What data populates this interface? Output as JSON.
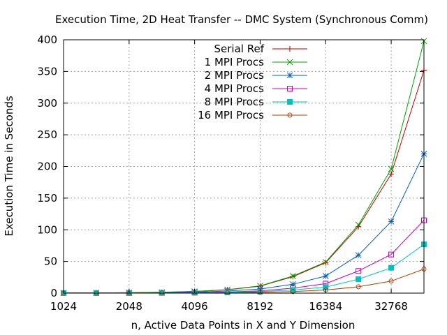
{
  "chart_data": {
    "type": "line",
    "title": "Execution Time, 2D Heat Transfer -- DMC System (Synchronous Comm)",
    "xlabel": "n, Active Data Points in X and Y Dimension",
    "ylabel": "Execution Time in Seconds",
    "xscale": "log2",
    "xlim": [
      1024,
      46341
    ],
    "ylim": [
      0,
      400
    ],
    "xticks": [
      1024,
      2048,
      4096,
      8192,
      16384,
      32768
    ],
    "yticks": [
      0,
      50,
      100,
      150,
      200,
      250,
      300,
      350,
      400
    ],
    "grid": true,
    "legend_position": "top-center",
    "x": [
      1024,
      1448,
      2048,
      2896,
      4096,
      5793,
      8192,
      11585,
      16384,
      23170,
      32768,
      46341
    ],
    "series": [
      {
        "name": "Serial Ref",
        "color": "#c00000",
        "marker": "plus",
        "values": [
          0.2,
          0.4,
          0.7,
          1.3,
          2.6,
          5.3,
          11,
          26,
          48,
          105,
          188,
          352
        ]
      },
      {
        "name": "1 MPI Procs",
        "color": "#00a000",
        "marker": "cross",
        "values": [
          0.2,
          0.4,
          0.7,
          1.3,
          2.7,
          5.5,
          11.5,
          27,
          49,
          108,
          196,
          398
        ]
      },
      {
        "name": "2 MPI Procs",
        "color": "#0060c0",
        "marker": "star",
        "values": [
          0.1,
          0.2,
          0.4,
          0.8,
          1.6,
          3.3,
          6.5,
          14,
          27,
          60,
          113,
          220
        ]
      },
      {
        "name": "4 MPI Procs",
        "color": "#c000c0",
        "marker": "open-square",
        "values": [
          0.1,
          0.1,
          0.2,
          0.5,
          0.9,
          1.8,
          3.6,
          7.8,
          15,
          35,
          61,
          115
        ]
      },
      {
        "name": "8 MPI Procs",
        "color": "#00c0c0",
        "marker": "fill-square",
        "values": [
          0.0,
          0.1,
          0.2,
          0.3,
          0.6,
          1.2,
          2.4,
          5,
          9.5,
          22,
          40,
          77
        ]
      },
      {
        "name": "16 MPI Procs",
        "color": "#b04000",
        "marker": "open-circle",
        "values": [
          0.0,
          0.0,
          0.1,
          0.2,
          0.3,
          0.6,
          1.2,
          2.5,
          5,
          10,
          19,
          38
        ]
      }
    ]
  }
}
